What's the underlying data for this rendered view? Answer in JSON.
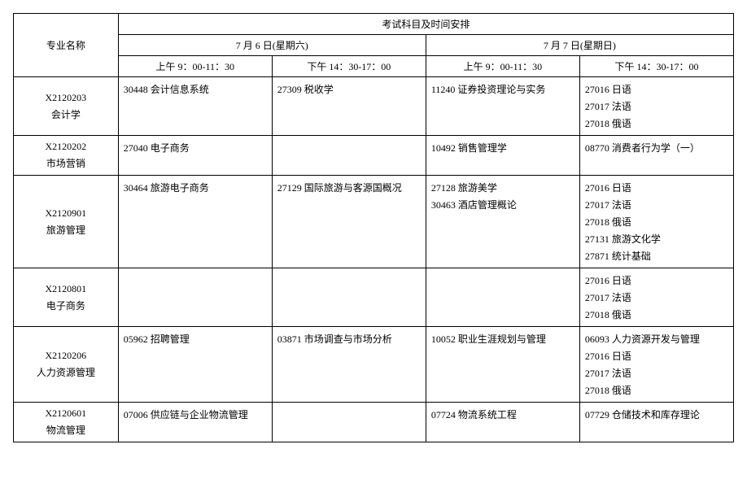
{
  "header": {
    "major_col": "专业名称",
    "top_row": "考试科目及时间安排",
    "day1": "7 月 6 日(星期六)",
    "day2": "7 月 7 日(星期日)",
    "s1": "上午 9：00-11：30",
    "s2": "下午 14：30-17：00",
    "s3": "上午 9：00-11：30",
    "s4": "下午 14：30-17：00"
  },
  "rows": [
    {
      "code": "X2120203",
      "name": "会计学",
      "c1": [
        "30448  会计信息系统"
      ],
      "c2": [
        "27309  税收学"
      ],
      "c3": [
        "11240  证券投资理论与实务"
      ],
      "c4": [
        "27016  日语",
        "27017  法语",
        "27018  俄语"
      ]
    },
    {
      "code": "X2120202",
      "name": "市场营销",
      "c1": [
        "27040  电子商务"
      ],
      "c2": [],
      "c3": [
        "10492  销售管理学"
      ],
      "c4": [
        "08770  消费者行为学（一）"
      ]
    },
    {
      "code": "X2120901",
      "name": "旅游管理",
      "c1": [
        "30464  旅游电子商务"
      ],
      "c2": [
        "27129  国际旅游与客源国概况"
      ],
      "c3": [
        "27128  旅游美学",
        "30463  酒店管理概论"
      ],
      "c4": [
        "27016  日语",
        "27017  法语",
        "27018  俄语",
        "27131  旅游文化学",
        "27871  统计基础"
      ]
    },
    {
      "code": "X2120801",
      "name": "电子商务",
      "c1": [],
      "c2": [],
      "c3": [],
      "c4": [
        "27016  日语",
        "27017  法语",
        "27018  俄语"
      ]
    },
    {
      "code": "X2120206",
      "name": "人力资源管理",
      "c1": [
        "05962  招聘管理"
      ],
      "c2": [
        "03871  市场调查与市场分析"
      ],
      "c3": [
        "10052  职业生涯规划与管理"
      ],
      "c4": [
        "06093  人力资源开发与管理",
        "27016  日语",
        "27017  法语",
        "27018  俄语"
      ]
    },
    {
      "code": "X2120601",
      "name": "物流管理",
      "c1": [
        "07006  供应链与企业物流管理"
      ],
      "c2": [],
      "c3": [
        "07724  物流系统工程"
      ],
      "c4": [
        "07729  仓储技术和库存理论"
      ]
    }
  ]
}
